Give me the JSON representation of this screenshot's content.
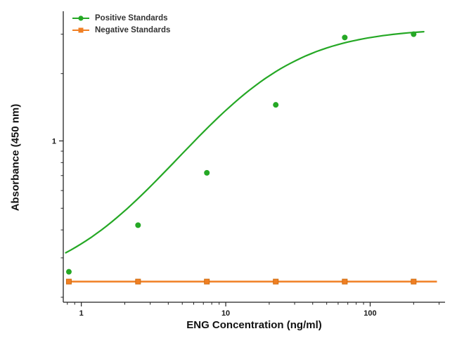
{
  "chart_data": {
    "type": "scatter",
    "title": "",
    "xlabel": "ENG Concentration (ng/ml)",
    "ylabel": "Absorbance (450 nm)",
    "x_scale": "log",
    "y_scale": "log",
    "xlim": [
      0.75,
      330
    ],
    "ylim": [
      0.19,
      3.8
    ],
    "x_major_ticks": [
      1,
      10,
      100
    ],
    "y_major_ticks": [
      1
    ],
    "grid": "off",
    "legend_position": "top-left",
    "series": [
      {
        "name": "Positive Standards",
        "marker": "circle",
        "color": "#25a825",
        "x": [
          0.82,
          2.47,
          7.4,
          22.2,
          66.7,
          200
        ],
        "y": [
          0.26,
          0.42,
          0.72,
          1.45,
          2.9,
          3.0
        ],
        "fit": {
          "type": "4PL",
          "bottom": 0.22,
          "top": 3.2,
          "ec50": 15,
          "hill": 1.15
        }
      },
      {
        "name": "Negative Standards",
        "marker": "square",
        "color": "#f07f23",
        "x": [
          0.82,
          2.47,
          7.4,
          22.2,
          66.7,
          200
        ],
        "y": [
          0.235,
          0.235,
          0.235,
          0.235,
          0.235,
          0.235
        ],
        "line": "flat"
      }
    ]
  }
}
